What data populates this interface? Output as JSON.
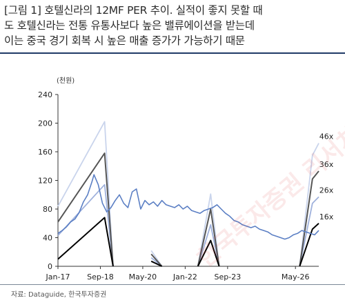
{
  "caption": {
    "line1": "[그림 1] 호텔신라의 12MF PER 추이. 실적이 좋지 못할 때",
    "line2": "도 호텔신라는 전통 유통사보다 높은 밸류에이션을 받는데",
    "line3": "이는 중국 경기 회복 시 높은 매출 증가가 가능하기 때문"
  },
  "source": "자료: Dataguide, 한국투자증권",
  "watermark": "한국투자증권 리서치 리",
  "chart_data": {
    "type": "line",
    "unit_label": "(천원)",
    "x_ticks": [
      "Jan-17",
      "Sep-18",
      "May-20",
      "Jan-22",
      "Sep-23",
      "May-26"
    ],
    "ylim": [
      0,
      240
    ],
    "y_ticks": [
      0,
      40,
      80,
      120,
      160,
      200,
      240
    ],
    "grid": false,
    "band_labels": [
      "46x",
      "36x",
      "26x",
      "16x"
    ],
    "colors": {
      "price": "#5b7fc4",
      "band_46x": "#c9d4ec",
      "band_36x": "#555555",
      "band_26x": "#9fb1dc",
      "band_16x": "#000000"
    },
    "price": {
      "x": [
        "2017-01",
        "2017-03",
        "2017-05",
        "2017-07",
        "2017-09",
        "2017-11",
        "2018-01",
        "2018-03",
        "2018-05",
        "2018-06",
        "2018-08",
        "2018-10",
        "2018-12",
        "2019-02",
        "2019-04",
        "2019-06",
        "2019-08",
        "2019-10",
        "2019-12",
        "2020-02",
        "2020-04",
        "2020-06",
        "2020-08",
        "2020-10",
        "2020-12",
        "2021-02",
        "2021-04",
        "2021-06",
        "2021-08",
        "2021-10",
        "2021-12",
        "2022-02",
        "2022-04",
        "2022-06",
        "2022-08",
        "2022-10",
        "2022-12",
        "2023-02",
        "2023-04",
        "2023-06",
        "2023-08",
        "2023-10",
        "2023-12",
        "2024-02",
        "2024-04",
        "2024-06",
        "2024-08",
        "2024-10",
        "2024-12",
        "2025-02",
        "2025-04",
        "2025-06",
        "2025-08",
        "2025-10",
        "2025-12",
        "2026-02",
        "2026-04",
        "2026-06",
        "2026-08",
        "2026-10",
        "2026-12",
        "2027-02",
        "2027-04"
      ],
      "y": [
        46,
        50,
        55,
        62,
        66,
        75,
        90,
        100,
        118,
        128,
        114,
        88,
        76,
        82,
        92,
        100,
        88,
        82,
        104,
        108,
        80,
        92,
        86,
        90,
        84,
        92,
        86,
        84,
        82,
        86,
        80,
        84,
        78,
        76,
        74,
        78,
        80,
        82,
        86,
        80,
        74,
        70,
        64,
        62,
        58,
        56,
        54,
        56,
        52,
        50,
        48,
        44,
        42,
        40,
        38,
        40,
        44,
        46,
        50,
        48,
        46,
        44,
        50
      ]
    },
    "bands": [
      {
        "label": "46x",
        "segments": [
          {
            "x": [
              "2017-01",
              "2018-11",
              "2019-03"
            ],
            "y": [
              84,
              202,
              0
            ]
          },
          {
            "x": [
              "2020-09",
              "2021-02"
            ],
            "y": [
              22,
              0
            ]
          },
          {
            "x": [
              "2022-07",
              "2023-01",
              "2023-05"
            ],
            "y": [
              0,
              101,
              0
            ]
          },
          {
            "x": [
              "2026-07",
              "2027-01",
              "2027-04"
            ],
            "y": [
              0,
              155,
              172
            ]
          }
        ]
      },
      {
        "label": "36x",
        "segments": [
          {
            "x": [
              "2017-01",
              "2018-11",
              "2019-03"
            ],
            "y": [
              62,
              158,
              0
            ]
          },
          {
            "x": [
              "2020-09",
              "2021-02"
            ],
            "y": [
              17,
              0
            ]
          },
          {
            "x": [
              "2022-07",
              "2023-01",
              "2023-05"
            ],
            "y": [
              0,
              80,
              0
            ]
          },
          {
            "x": [
              "2026-07",
              "2027-01",
              "2027-04"
            ],
            "y": [
              0,
              122,
              133
            ]
          }
        ]
      },
      {
        "label": "26x",
        "segments": [
          {
            "x": [
              "2017-01",
              "2018-11",
              "2019-03"
            ],
            "y": [
              43,
              114,
              0
            ]
          },
          {
            "x": [
              "2020-09",
              "2021-02"
            ],
            "y": [
              12,
              0
            ]
          },
          {
            "x": [
              "2022-07",
              "2023-01",
              "2023-05"
            ],
            "y": [
              0,
              58,
              0
            ]
          },
          {
            "x": [
              "2026-07",
              "2027-01",
              "2027-04"
            ],
            "y": [
              0,
              88,
              97
            ]
          }
        ]
      },
      {
        "label": "16x",
        "segments": [
          {
            "x": [
              "2017-01",
              "2018-11",
              "2019-03"
            ],
            "y": [
              10,
              68,
              0
            ]
          },
          {
            "x": [
              "2020-09",
              "2021-02"
            ],
            "y": [
              7,
              0
            ]
          },
          {
            "x": [
              "2022-07",
              "2023-01",
              "2023-05"
            ],
            "y": [
              0,
              36,
              0
            ]
          },
          {
            "x": [
              "2026-07",
              "2027-01",
              "2027-04"
            ],
            "y": [
              0,
              52,
              60
            ]
          }
        ]
      }
    ]
  }
}
